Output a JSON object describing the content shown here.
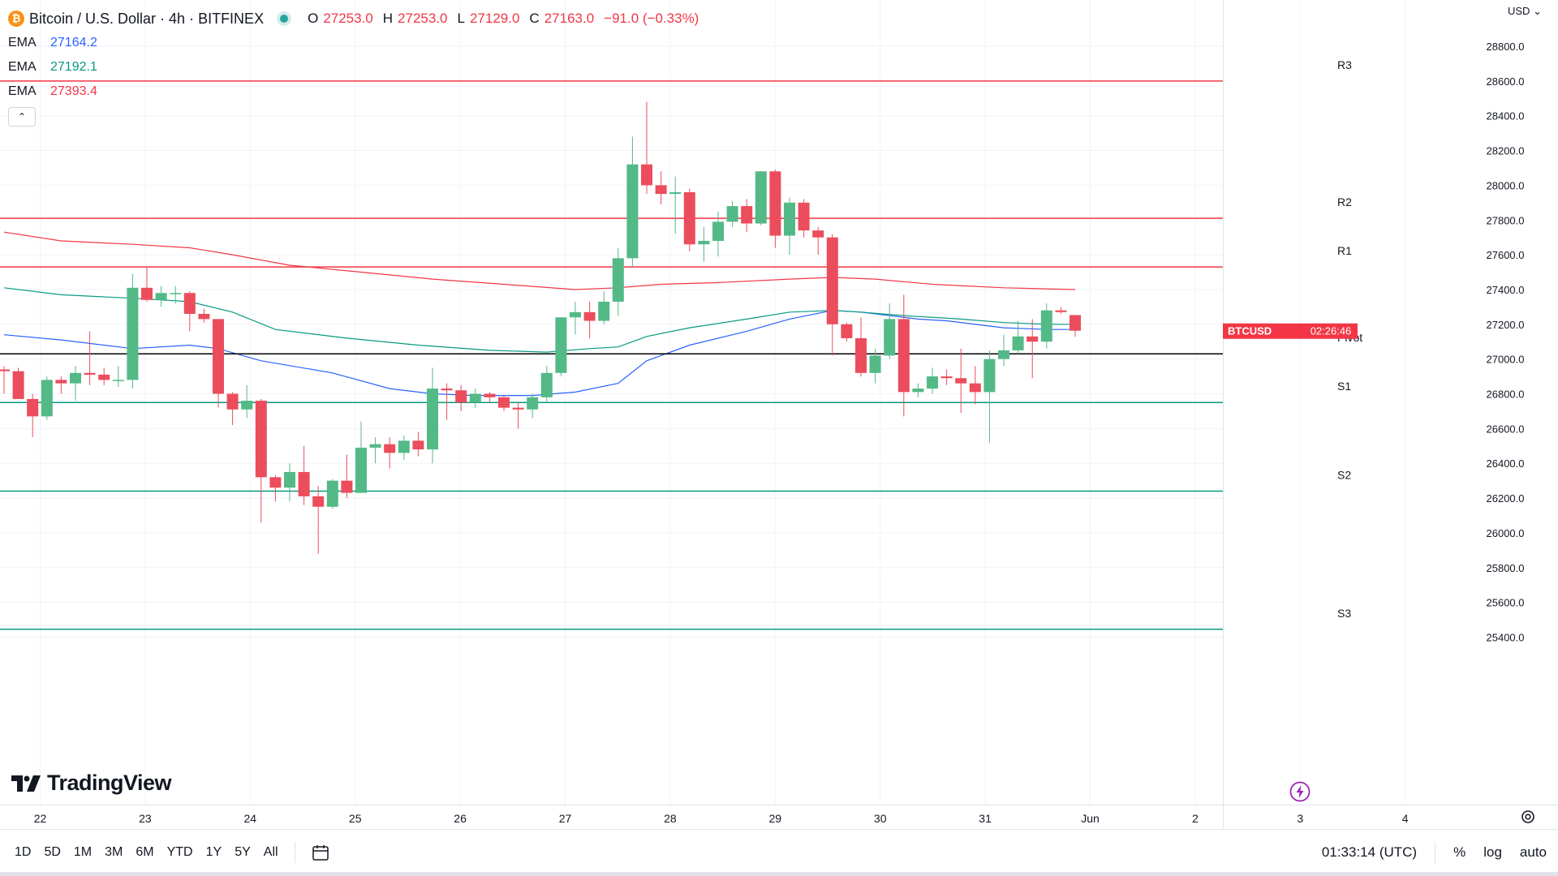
{
  "header": {
    "symbol_title": "Bitcoin / U.S. Dollar · 4h · BITFINEX",
    "coin_glyph": "₿",
    "ohlc": {
      "o_label": "O",
      "o": "27253.0",
      "h_label": "H",
      "h": "27253.0",
      "l_label": "L",
      "l": "27129.0",
      "c_label": "C",
      "c": "27163.0",
      "change": "−91.0 (−0.33%)"
    },
    "ema": [
      {
        "label": "EMA",
        "value": "27164.2",
        "color": "#2962ff"
      },
      {
        "label": "EMA",
        "value": "27192.1",
        "color": "#089981"
      },
      {
        "label": "EMA",
        "value": "27393.4",
        "color": "#f23645"
      }
    ],
    "collapse_glyph": "⌃"
  },
  "currency_label": "USD",
  "currency_glyph": "⌄",
  "logo_text": "TradingView",
  "price_tag": {
    "symbol": "BTCUSD",
    "countdown": "02:26:46",
    "color": "#f23645"
  },
  "bottom_bar": {
    "ranges": [
      "1D",
      "5D",
      "1M",
      "3M",
      "6M",
      "YTD",
      "1Y",
      "5Y",
      "All"
    ],
    "time": "01:33:14 (UTC)",
    "percent": "%",
    "log": "log",
    "auto": "auto"
  },
  "chart_data": {
    "type": "candlestick",
    "y_axis": {
      "min": 25300,
      "max": 29000,
      "ticks": [
        25400,
        25600,
        25800,
        26000,
        26200,
        26400,
        26600,
        26800,
        27000,
        27200,
        27400,
        27600,
        27800,
        28000,
        28200,
        28400,
        28600,
        28800
      ],
      "tick_labels": [
        "25400.0",
        "25600.0",
        "25800.0",
        "26000.0",
        "26200.0",
        "26400.0",
        "26600.0",
        "26800.0",
        "27000.0",
        "27200.0",
        "27400.0",
        "27600.0",
        "27800.0",
        "28000.0",
        "28200.0",
        "28400.0",
        "28600.0",
        "28800.0"
      ]
    },
    "x_axis": {
      "labels": [
        "22",
        "23",
        "24",
        "25",
        "26",
        "27",
        "28",
        "29",
        "30",
        "31",
        "Jun",
        "2",
        "3",
        "4"
      ]
    },
    "pivot_levels": [
      {
        "label": "R3",
        "value": 28600,
        "color": "#f23645"
      },
      {
        "label": "R2",
        "value": 27810,
        "color": "#f23645"
      },
      {
        "label": "R1",
        "value": 27530,
        "color": "#f23645"
      },
      {
        "label": "Pivot",
        "value": 27030,
        "color": "#000000"
      },
      {
        "label": "S1",
        "value": 26750,
        "color": "#089981"
      },
      {
        "label": "S2",
        "value": 26240,
        "color": "#089981"
      },
      {
        "label": "S3",
        "value": 25445,
        "color": "#089981"
      }
    ],
    "last_price": 27163,
    "candles": [
      [
        26940,
        26960,
        26800,
        26930
      ],
      [
        26930,
        26950,
        26780,
        26770
      ],
      [
        26770,
        26800,
        26550,
        26670
      ],
      [
        26670,
        26900,
        26650,
        26880
      ],
      [
        26880,
        26900,
        26800,
        26860
      ],
      [
        26860,
        26960,
        26760,
        26920
      ],
      [
        26920,
        27160,
        26850,
        26910
      ],
      [
        26910,
        26950,
        26850,
        26880
      ],
      [
        26880,
        26960,
        26840,
        26880
      ],
      [
        26880,
        27490,
        26830,
        27410
      ],
      [
        27410,
        27530,
        27330,
        27340
      ],
      [
        27340,
        27420,
        27300,
        27380
      ],
      [
        27380,
        27420,
        27320,
        27380
      ],
      [
        27380,
        27390,
        27160,
        27260
      ],
      [
        27260,
        27290,
        27210,
        27230
      ],
      [
        27230,
        27230,
        26720,
        26800
      ],
      [
        26800,
        26810,
        26620,
        26710
      ],
      [
        26710,
        26850,
        26660,
        26760
      ],
      [
        26760,
        26770,
        26060,
        26320
      ],
      [
        26320,
        26330,
        26180,
        26260
      ],
      [
        26260,
        26400,
        26180,
        26350
      ],
      [
        26350,
        26500,
        26160,
        26210
      ],
      [
        26210,
        26270,
        25880,
        26150
      ],
      [
        26150,
        26310,
        26140,
        26300
      ],
      [
        26300,
        26450,
        26200,
        26230
      ],
      [
        26230,
        26640,
        26230,
        26490
      ],
      [
        26490,
        26550,
        26400,
        26510
      ],
      [
        26510,
        26550,
        26370,
        26460
      ],
      [
        26460,
        26560,
        26420,
        26530
      ],
      [
        26530,
        26580,
        26440,
        26480
      ],
      [
        26480,
        26950,
        26400,
        26830
      ],
      [
        26830,
        26860,
        26650,
        26820
      ],
      [
        26820,
        26850,
        26700,
        26750
      ],
      [
        26750,
        26830,
        26720,
        26800
      ],
      [
        26800,
        26810,
        26750,
        26780
      ],
      [
        26780,
        26790,
        26700,
        26720
      ],
      [
        26720,
        26750,
        26600,
        26710
      ],
      [
        26710,
        26800,
        26660,
        26780
      ],
      [
        26780,
        26960,
        26750,
        26920
      ],
      [
        26920,
        27240,
        26900,
        27240
      ],
      [
        27240,
        27330,
        27140,
        27270
      ],
      [
        27270,
        27330,
        27120,
        27220
      ],
      [
        27220,
        27390,
        27200,
        27330
      ],
      [
        27330,
        27640,
        27250,
        27580
      ],
      [
        27580,
        28280,
        27530,
        28120
      ],
      [
        28120,
        28480,
        27950,
        28000
      ],
      [
        28000,
        28080,
        27890,
        27950
      ],
      [
        27950,
        28050,
        27720,
        27960
      ],
      [
        27960,
        27980,
        27620,
        27660
      ],
      [
        27660,
        27760,
        27560,
        27680
      ],
      [
        27680,
        27850,
        27590,
        27790
      ],
      [
        27790,
        27910,
        27760,
        27880
      ],
      [
        27880,
        27920,
        27730,
        27780
      ],
      [
        27780,
        28080,
        27770,
        28080
      ],
      [
        28080,
        28090,
        27640,
        27710
      ],
      [
        27710,
        27930,
        27600,
        27900
      ],
      [
        27900,
        27920,
        27700,
        27740
      ],
      [
        27740,
        27760,
        27600,
        27700
      ],
      [
        27700,
        27720,
        27020,
        27200
      ],
      [
        27200,
        27210,
        27100,
        27120
      ],
      [
        27120,
        27240,
        26900,
        26920
      ],
      [
        26920,
        27060,
        26860,
        27020
      ],
      [
        27020,
        27320,
        27000,
        27230
      ],
      [
        27230,
        27370,
        26670,
        26810
      ],
      [
        26810,
        26860,
        26780,
        26830
      ],
      [
        26830,
        26950,
        26800,
        26900
      ],
      [
        26900,
        26940,
        26850,
        26890
      ],
      [
        26890,
        27060,
        26690,
        26860
      ],
      [
        26860,
        26960,
        26740,
        26810
      ],
      [
        26810,
        27050,
        26520,
        27000
      ],
      [
        27000,
        27140,
        26960,
        27050
      ],
      [
        27050,
        27220,
        27030,
        27130
      ],
      [
        27130,
        27230,
        26890,
        27100
      ],
      [
        27100,
        27320,
        27060,
        27280
      ],
      [
        27280,
        27300,
        27260,
        27270
      ],
      [
        27253,
        27253,
        27129,
        27163
      ]
    ],
    "ema_series": [
      {
        "name": "EMA",
        "value": 27164.2,
        "color": "#2962ff",
        "points": [
          [
            0,
            27140
          ],
          [
            4,
            27110
          ],
          [
            9,
            27060
          ],
          [
            13,
            27080
          ],
          [
            15,
            27060
          ],
          [
            18,
            26990
          ],
          [
            23,
            26920
          ],
          [
            27,
            26830
          ],
          [
            30,
            26800
          ],
          [
            33,
            26790
          ],
          [
            37,
            26790
          ],
          [
            40,
            26810
          ],
          [
            43,
            26860
          ],
          [
            45,
            26990
          ],
          [
            48,
            27080
          ],
          [
            52,
            27160
          ],
          [
            55,
            27230
          ],
          [
            58,
            27280
          ],
          [
            60,
            27270
          ],
          [
            64,
            27230
          ],
          [
            66,
            27220
          ],
          [
            70,
            27180
          ],
          [
            73,
            27170
          ],
          [
            75,
            27170
          ]
        ]
      },
      {
        "name": "EMA",
        "value": 27192.1,
        "color": "#089981",
        "points": [
          [
            0,
            27410
          ],
          [
            4,
            27370
          ],
          [
            9,
            27350
          ],
          [
            13,
            27330
          ],
          [
            16,
            27270
          ],
          [
            19,
            27170
          ],
          [
            24,
            27120
          ],
          [
            29,
            27080
          ],
          [
            34,
            27050
          ],
          [
            38,
            27040
          ],
          [
            41,
            27060
          ],
          [
            43,
            27070
          ],
          [
            45,
            27130
          ],
          [
            48,
            27180
          ],
          [
            52,
            27230
          ],
          [
            55,
            27270
          ],
          [
            58,
            27280
          ],
          [
            60,
            27270
          ],
          [
            63,
            27250
          ],
          [
            67,
            27230
          ],
          [
            70,
            27210
          ],
          [
            73,
            27200
          ],
          [
            75,
            27200
          ]
        ]
      },
      {
        "name": "EMA",
        "value": 27393.4,
        "color": "#f23645",
        "points": [
          [
            0,
            27730
          ],
          [
            4,
            27680
          ],
          [
            9,
            27660
          ],
          [
            13,
            27640
          ],
          [
            16,
            27600
          ],
          [
            20,
            27540
          ],
          [
            25,
            27500
          ],
          [
            30,
            27460
          ],
          [
            35,
            27430
          ],
          [
            40,
            27400
          ],
          [
            43,
            27410
          ],
          [
            46,
            27430
          ],
          [
            50,
            27440
          ],
          [
            55,
            27460
          ],
          [
            58,
            27470
          ],
          [
            61,
            27460
          ],
          [
            65,
            27430
          ],
          [
            70,
            27410
          ],
          [
            75,
            27400
          ]
        ]
      }
    ]
  }
}
